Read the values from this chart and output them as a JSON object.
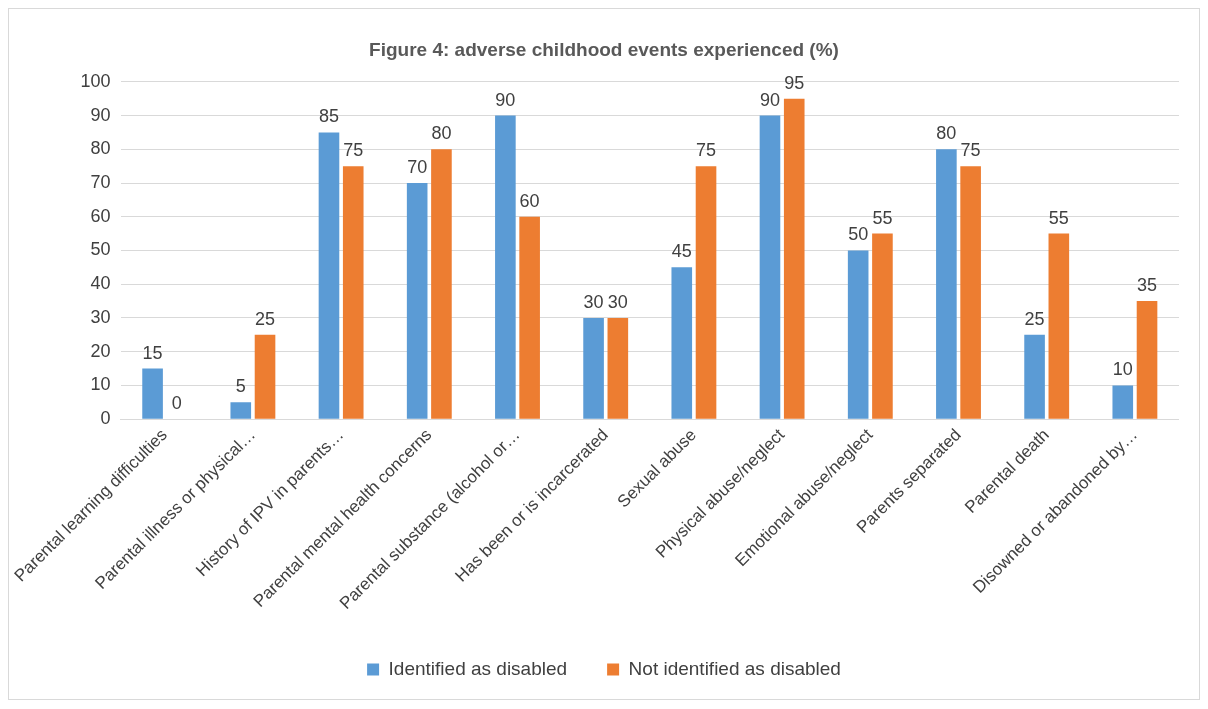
{
  "chart_data": {
    "type": "bar",
    "title": "Figure 4: adverse childhood events experienced (%)",
    "categories": [
      "Parental learning difficulties",
      "Parental illness or physical…",
      "History of IPV in parents…",
      "Parental mental health concerns",
      "Parental substance (alcohol or…",
      "Has been or is incarcerated",
      "Sexual abuse",
      "Physical abuse/neglect",
      "Emotional abuse/neglect",
      "Parents separated",
      "Parental death",
      "Disowned or abandoned by…"
    ],
    "series": [
      {
        "name": "Identified as disabled",
        "color": "#5b9bd5",
        "values": [
          15,
          5,
          85,
          70,
          90,
          30,
          45,
          90,
          50,
          80,
          25,
          10
        ]
      },
      {
        "name": "Not identified as disabled",
        "color": "#ed7d31",
        "values": [
          0,
          25,
          75,
          80,
          60,
          30,
          75,
          95,
          55,
          75,
          55,
          35
        ]
      }
    ],
    "ylim": [
      0,
      100
    ],
    "yticks": [
      0,
      10,
      20,
      30,
      40,
      50,
      60,
      70,
      80,
      90,
      100
    ],
    "grid": "y",
    "legend": "bottom",
    "data_labels": true
  }
}
